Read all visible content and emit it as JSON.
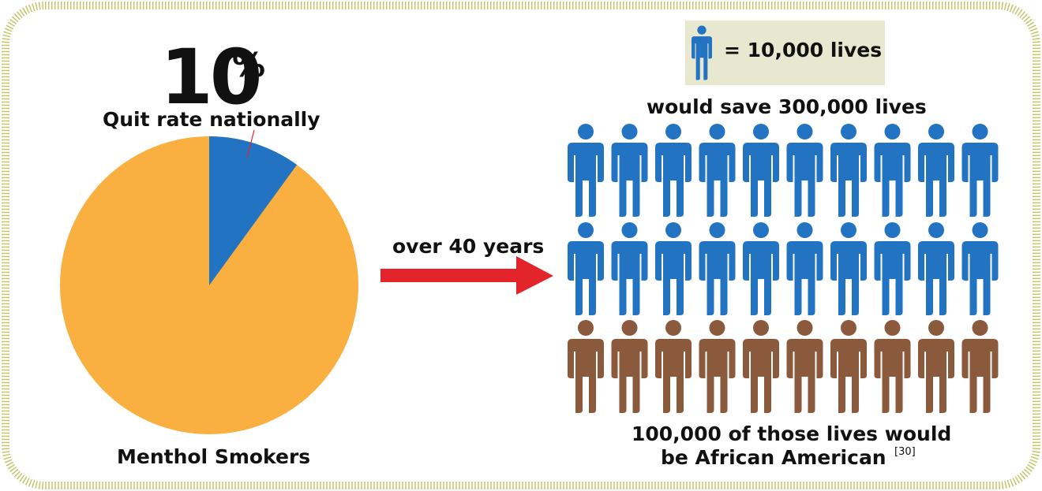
{
  "pie": {
    "value_percent": "10",
    "percent_sign": "%",
    "slice_label": "Quit rate nationally",
    "whole_label": "Menthol Smokers",
    "slice_color": "#2274c2",
    "whole_color": "#f9b041",
    "slice_fraction": 0.1
  },
  "arrow": {
    "label": "over 40 years",
    "color": "#e3242b"
  },
  "legend": {
    "text": "= 10,000 lives",
    "background": "#e8e7cf",
    "icon": "person-icon"
  },
  "pictogram": {
    "title": "would save 300,000 lives",
    "rows": [
      {
        "count": 10,
        "color": "#2274c2",
        "icon": "person-icon"
      },
      {
        "count": 10,
        "color": "#2274c2",
        "icon": "person-icon"
      },
      {
        "count": 10,
        "color": "#8b5a3c",
        "icon": "person-icon"
      }
    ],
    "footer_line1": "100,000 of those lives would",
    "footer_line2": "be African American",
    "footer_ref": "[30]"
  },
  "frame": {
    "color": "#c4c66a"
  }
}
